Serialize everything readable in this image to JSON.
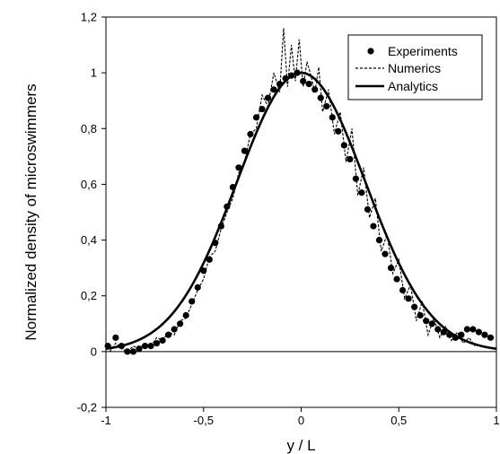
{
  "chart_data": {
    "type": "line",
    "title": "",
    "xlabel": "y / L",
    "ylabel": "Normalized density of microswimmers",
    "xlim": [
      -1,
      1
    ],
    "ylim": [
      -0.2,
      1.2
    ],
    "xticks": [
      "-1",
      "-0,5",
      "0",
      "0,5",
      "1"
    ],
    "yticks": [
      "-0,2",
      "0",
      "0,2",
      "0,4",
      "0,6",
      "0,8",
      "1",
      "1,2"
    ],
    "grid": false,
    "legend_position": "top-right",
    "colors": {
      "line": "#000000",
      "background": "#ffffff"
    },
    "series": [
      {
        "name": "Experiments",
        "style": "markers",
        "x": [
          -0.99,
          -0.95,
          -0.92,
          -0.89,
          -0.86,
          -0.83,
          -0.8,
          -0.77,
          -0.74,
          -0.71,
          -0.68,
          -0.65,
          -0.62,
          -0.59,
          -0.56,
          -0.53,
          -0.5,
          -0.47,
          -0.44,
          -0.41,
          -0.38,
          -0.35,
          -0.32,
          -0.29,
          -0.26,
          -0.23,
          -0.2,
          -0.17,
          -0.14,
          -0.11,
          -0.08,
          -0.05,
          -0.02,
          0.01,
          0.04,
          0.07,
          0.1,
          0.13,
          0.16,
          0.19,
          0.22,
          0.25,
          0.28,
          0.31,
          0.34,
          0.37,
          0.4,
          0.43,
          0.46,
          0.49,
          0.52,
          0.55,
          0.58,
          0.61,
          0.64,
          0.67,
          0.7,
          0.73,
          0.76,
          0.79,
          0.82,
          0.85,
          0.88,
          0.91,
          0.94,
          0.97
        ],
        "y": [
          0.02,
          0.05,
          0.02,
          0.0,
          0.0,
          0.01,
          0.02,
          0.02,
          0.03,
          0.04,
          0.06,
          0.08,
          0.1,
          0.13,
          0.18,
          0.23,
          0.29,
          0.33,
          0.39,
          0.45,
          0.52,
          0.59,
          0.66,
          0.72,
          0.78,
          0.84,
          0.87,
          0.91,
          0.94,
          0.96,
          0.98,
          0.99,
          1.0,
          0.97,
          0.96,
          0.94,
          0.91,
          0.88,
          0.84,
          0.79,
          0.74,
          0.69,
          0.62,
          0.57,
          0.51,
          0.45,
          0.4,
          0.35,
          0.3,
          0.26,
          0.22,
          0.19,
          0.16,
          0.13,
          0.11,
          0.1,
          0.08,
          0.07,
          0.06,
          0.05,
          0.06,
          0.08,
          0.08,
          0.07,
          0.06,
          0.05
        ]
      },
      {
        "name": "Numerics",
        "style": "dashed",
        "x": [
          -0.98,
          -0.95,
          -0.92,
          -0.89,
          -0.86,
          -0.83,
          -0.8,
          -0.77,
          -0.74,
          -0.71,
          -0.68,
          -0.65,
          -0.62,
          -0.59,
          -0.56,
          -0.53,
          -0.5,
          -0.47,
          -0.44,
          -0.41,
          -0.38,
          -0.35,
          -0.32,
          -0.29,
          -0.26,
          -0.23,
          -0.2,
          -0.17,
          -0.14,
          -0.11,
          -0.09,
          -0.07,
          -0.05,
          -0.03,
          -0.01,
          0.01,
          0.03,
          0.05,
          0.07,
          0.09,
          0.11,
          0.14,
          0.17,
          0.2,
          0.23,
          0.26,
          0.29,
          0.32,
          0.35,
          0.38,
          0.41,
          0.44,
          0.47,
          0.5,
          0.53,
          0.56,
          0.59,
          0.62,
          0.65,
          0.68,
          0.71,
          0.74,
          0.77,
          0.8,
          0.83,
          0.86,
          0.89
        ],
        "y": [
          0.0,
          0.03,
          0.01,
          0.0,
          0.02,
          0.01,
          0.03,
          0.02,
          0.05,
          0.04,
          0.07,
          0.06,
          0.11,
          0.12,
          0.17,
          0.22,
          0.26,
          0.34,
          0.36,
          0.44,
          0.5,
          0.55,
          0.64,
          0.68,
          0.78,
          0.8,
          0.92,
          0.88,
          1.0,
          0.93,
          1.16,
          0.95,
          1.1,
          0.97,
          1.12,
          0.95,
          1.04,
          0.99,
          0.93,
          1.02,
          0.86,
          0.94,
          0.78,
          0.86,
          0.68,
          0.8,
          0.56,
          0.66,
          0.48,
          0.55,
          0.36,
          0.42,
          0.28,
          0.33,
          0.19,
          0.24,
          0.11,
          0.18,
          0.06,
          0.12,
          0.05,
          0.09,
          0.04,
          0.07,
          0.03,
          0.05,
          0.02
        ]
      },
      {
        "name": "Analytics",
        "style": "solid",
        "function": "gaussian",
        "peak_x": 0.0,
        "peak_y": 1.0,
        "sigma": 0.33
      }
    ]
  }
}
